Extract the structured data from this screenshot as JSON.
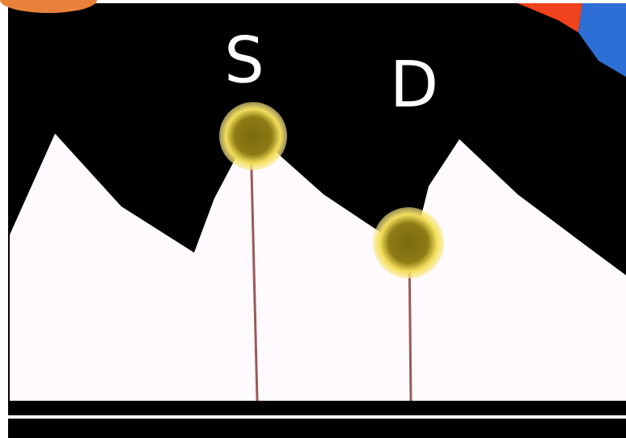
{
  "labels": {
    "s": "S",
    "d": "D"
  }
}
